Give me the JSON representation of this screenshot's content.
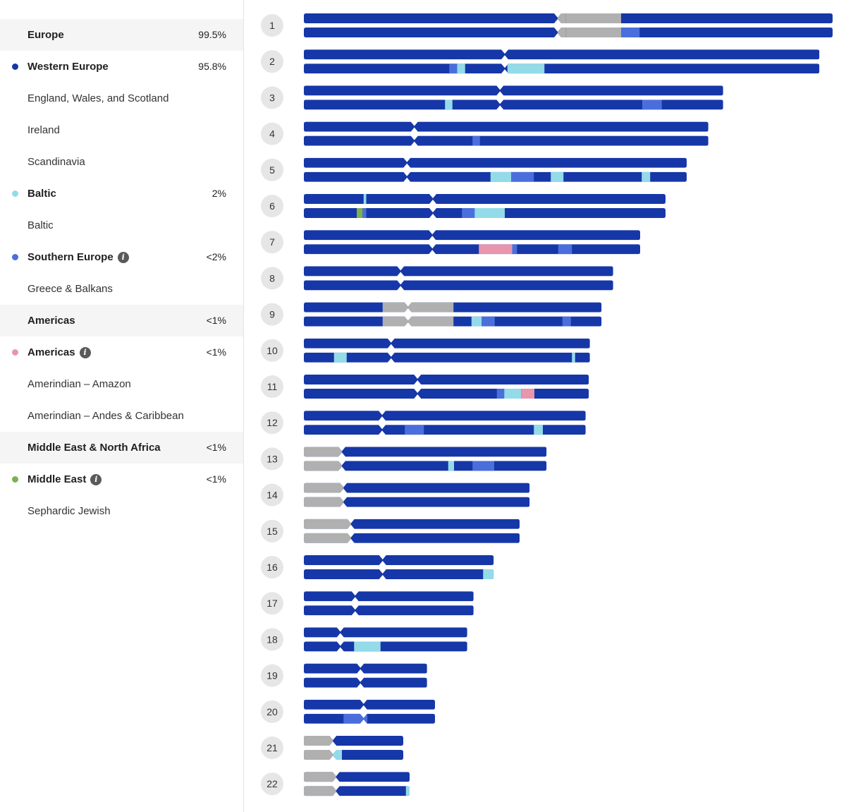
{
  "sidebar": {
    "rows": [
      {
        "label": "Europe",
        "pct": "99.5%",
        "kind": "group"
      },
      {
        "label": "Western Europe",
        "pct": "95.8%",
        "kind": "region",
        "dot": "#1637a8"
      },
      {
        "label": "England, Wales, and Scotland",
        "pct": "",
        "kind": "sub"
      },
      {
        "label": "Ireland",
        "pct": "",
        "kind": "sub"
      },
      {
        "label": "Scandinavia",
        "pct": "",
        "kind": "sub"
      },
      {
        "label": "Baltic",
        "pct": "2%",
        "kind": "region",
        "dot": "#93dbe9"
      },
      {
        "label": "Baltic",
        "pct": "",
        "kind": "sub"
      },
      {
        "label": "Southern Europe",
        "pct": "<2%",
        "kind": "region",
        "dot": "#4a6fdc",
        "info": true
      },
      {
        "label": "Greece & Balkans",
        "pct": "",
        "kind": "sub"
      },
      {
        "label": "Americas",
        "pct": "<1%",
        "kind": "group"
      },
      {
        "label": "Americas",
        "pct": "<1%",
        "kind": "region",
        "dot": "#e895ae",
        "info": true
      },
      {
        "label": "Amerindian – Amazon",
        "pct": "",
        "kind": "sub"
      },
      {
        "label": "Amerindian – Andes & Caribbean",
        "pct": "",
        "kind": "sub"
      },
      {
        "label": "Middle East & North Africa",
        "pct": "<1%",
        "kind": "group"
      },
      {
        "label": "Middle East",
        "pct": "<1%",
        "kind": "region",
        "dot": "#7faf4e",
        "info": true
      },
      {
        "label": "Sephardic Jewish",
        "pct": "",
        "kind": "sub"
      }
    ]
  },
  "colors": {
    "W": "#1637a8",
    "S": "#4a6fdc",
    "B": "#93dbe9",
    "A": "#e895ae",
    "M": "#7faf4e",
    "U": "#b0b0b0",
    "badge": "#e6e6e6"
  },
  "chart_data": {
    "type": "chromosome-painting",
    "unit": "fraction of chromosome 1 length",
    "chromosomes": [
      {
        "n": "1",
        "len": 1.0,
        "cen": 0.48,
        "a": [
          [
            0.48,
            0.495,
            "U"
          ],
          [
            0.495,
            0.6,
            "U"
          ]
        ],
        "b": [
          [
            0.48,
            0.495,
            "U"
          ],
          [
            0.495,
            0.6,
            "U"
          ],
          [
            0.6,
            0.635,
            "S"
          ]
        ]
      },
      {
        "n": "2",
        "len": 0.975,
        "cen": 0.38,
        "a": [],
        "b": [
          [
            0.275,
            0.29,
            "S"
          ],
          [
            0.29,
            0.305,
            "B"
          ],
          [
            0.385,
            0.455,
            "B"
          ]
        ]
      },
      {
        "n": "3",
        "len": 0.793,
        "cen": 0.371,
        "a": [],
        "b": [
          [
            0.267,
            0.281,
            "B"
          ],
          [
            0.64,
            0.677,
            "S"
          ]
        ]
      },
      {
        "n": "4",
        "len": 0.765,
        "cen": 0.209,
        "a": [],
        "b": [
          [
            0.319,
            0.333,
            "S"
          ]
        ]
      },
      {
        "n": "5",
        "len": 0.724,
        "cen": 0.195,
        "a": [],
        "b": [
          [
            0.353,
            0.392,
            "B"
          ],
          [
            0.392,
            0.435,
            "S"
          ],
          [
            0.467,
            0.491,
            "B"
          ],
          [
            0.639,
            0.655,
            "B"
          ]
        ]
      },
      {
        "n": "6",
        "len": 0.684,
        "cen": 0.244,
        "a": [
          [
            0.113,
            0.118,
            "B"
          ]
        ],
        "b": [
          [
            0.1,
            0.111,
            "M"
          ],
          [
            0.111,
            0.118,
            "S"
          ],
          [
            0.299,
            0.323,
            "S"
          ],
          [
            0.323,
            0.38,
            "B"
          ]
        ]
      },
      {
        "n": "7",
        "len": 0.636,
        "cen": 0.243,
        "a": [],
        "b": [
          [
            0.331,
            0.394,
            "A"
          ],
          [
            0.394,
            0.403,
            "S"
          ],
          [
            0.481,
            0.507,
            "S"
          ]
        ]
      },
      {
        "n": "8",
        "len": 0.585,
        "cen": 0.183,
        "a": [],
        "b": []
      },
      {
        "n": "9",
        "len": 0.563,
        "cen": 0.197,
        "a": [
          [
            0.149,
            0.197,
            "U"
          ],
          [
            0.197,
            0.283,
            "U"
          ]
        ],
        "b": [
          [
            0.149,
            0.197,
            "U"
          ],
          [
            0.197,
            0.283,
            "U"
          ],
          [
            0.317,
            0.336,
            "B"
          ],
          [
            0.336,
            0.361,
            "S"
          ],
          [
            0.489,
            0.505,
            "S"
          ]
        ]
      },
      {
        "n": "10",
        "len": 0.541,
        "cen": 0.165,
        "a": [],
        "b": [
          [
            0.057,
            0.081,
            "B"
          ],
          [
            0.507,
            0.513,
            "B"
          ]
        ]
      },
      {
        "n": "11",
        "len": 0.539,
        "cen": 0.215,
        "a": [],
        "b": [
          [
            0.365,
            0.379,
            "S"
          ],
          [
            0.379,
            0.411,
            "B"
          ],
          [
            0.411,
            0.436,
            "A"
          ]
        ]
      },
      {
        "n": "12",
        "len": 0.533,
        "cen": 0.148,
        "a": [],
        "b": [
          [
            0.191,
            0.227,
            "S"
          ],
          [
            0.435,
            0.452,
            "B"
          ]
        ]
      },
      {
        "n": "13",
        "len": 0.459,
        "cen": 0.072,
        "a": [
          [
            0.0,
            0.072,
            "U"
          ]
        ],
        "b": [
          [
            0.0,
            0.072,
            "U"
          ],
          [
            0.273,
            0.284,
            "B"
          ],
          [
            0.319,
            0.36,
            "S"
          ]
        ]
      },
      {
        "n": "14",
        "len": 0.427,
        "cen": 0.075,
        "a": [
          [
            0.0,
            0.075,
            "U"
          ]
        ],
        "b": [
          [
            0.0,
            0.075,
            "U"
          ]
        ]
      },
      {
        "n": "15",
        "len": 0.408,
        "cen": 0.089,
        "a": [
          [
            0.0,
            0.089,
            "U"
          ]
        ],
        "b": [
          [
            0.0,
            0.089,
            "U"
          ]
        ]
      },
      {
        "n": "16",
        "len": 0.359,
        "cen": 0.149,
        "a": [],
        "b": [
          [
            0.339,
            0.359,
            "B"
          ]
        ]
      },
      {
        "n": "17",
        "len": 0.321,
        "cen": 0.097,
        "a": [],
        "b": []
      },
      {
        "n": "18",
        "len": 0.309,
        "cen": 0.069,
        "a": [],
        "b": [
          [
            0.095,
            0.145,
            "B"
          ]
        ]
      },
      {
        "n": "19",
        "len": 0.233,
        "cen": 0.107,
        "a": [],
        "b": []
      },
      {
        "n": "20",
        "len": 0.248,
        "cen": 0.113,
        "a": [],
        "b": [
          [
            0.075,
            0.113,
            "S"
          ],
          [
            0.113,
            0.12,
            "S"
          ]
        ]
      },
      {
        "n": "21",
        "len": 0.188,
        "cen": 0.055,
        "a": [
          [
            0.0,
            0.055,
            "U"
          ]
        ],
        "b": [
          [
            0.0,
            0.055,
            "U"
          ],
          [
            0.055,
            0.072,
            "B"
          ]
        ]
      },
      {
        "n": "22",
        "len": 0.2,
        "cen": 0.061,
        "a": [
          [
            0.0,
            0.061,
            "U"
          ]
        ],
        "b": [
          [
            0.0,
            0.061,
            "U"
          ],
          [
            0.193,
            0.2,
            "B"
          ]
        ]
      }
    ]
  }
}
